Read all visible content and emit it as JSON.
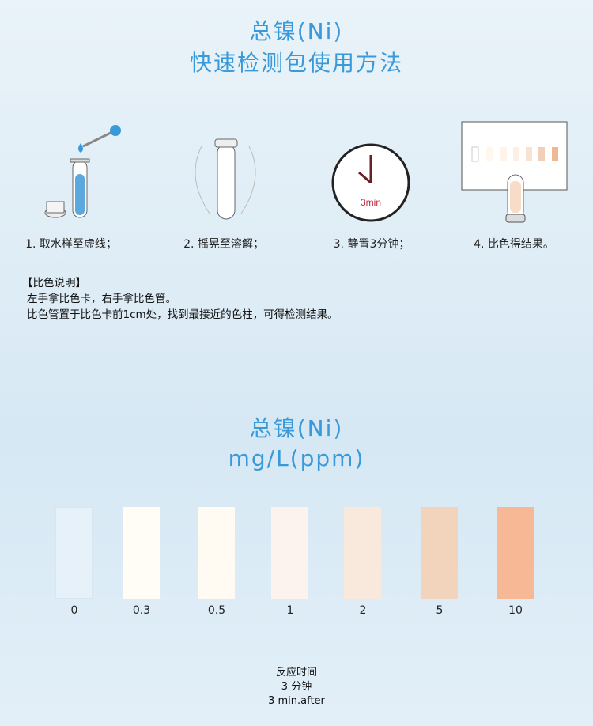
{
  "header": {
    "line1": "总镍(Ni)",
    "line2": "快速检测包使用方法"
  },
  "steps": [
    {
      "label": "1. 取水样至虚线；",
      "icon": "test-tube-dropper-icon"
    },
    {
      "label": "2. 摇晃至溶解；",
      "icon": "shake-tube-icon"
    },
    {
      "label": "3. 静置3分钟；",
      "icon": "clock-icon",
      "clock_text": "3min"
    },
    {
      "label": "4. 比色得结果。",
      "icon": "color-card-compare-icon"
    }
  ],
  "instructions": {
    "heading": "【比色说明】",
    "line1": "左手拿比色卡，右手拿比色管。",
    "line2": "比色管置于比色卡前1cm处，找到最接近的色柱，可得检测结果。"
  },
  "card": {
    "title": "总镍(Ni)",
    "unit": "mg/L(ppm)"
  },
  "chart_data": {
    "type": "table",
    "categories": [
      "0",
      "0.3",
      "0.5",
      "1",
      "2",
      "5",
      "10"
    ],
    "colors": [
      "#e6f1f9",
      "#fffdf5",
      "#fffaf2",
      "#fdf3ee",
      "#f9e9dd",
      "#f2d3bb",
      "#f7b895"
    ]
  },
  "footer": {
    "line1": "反应时间",
    "line2": "3  分钟",
    "line3": "3  min.after"
  }
}
